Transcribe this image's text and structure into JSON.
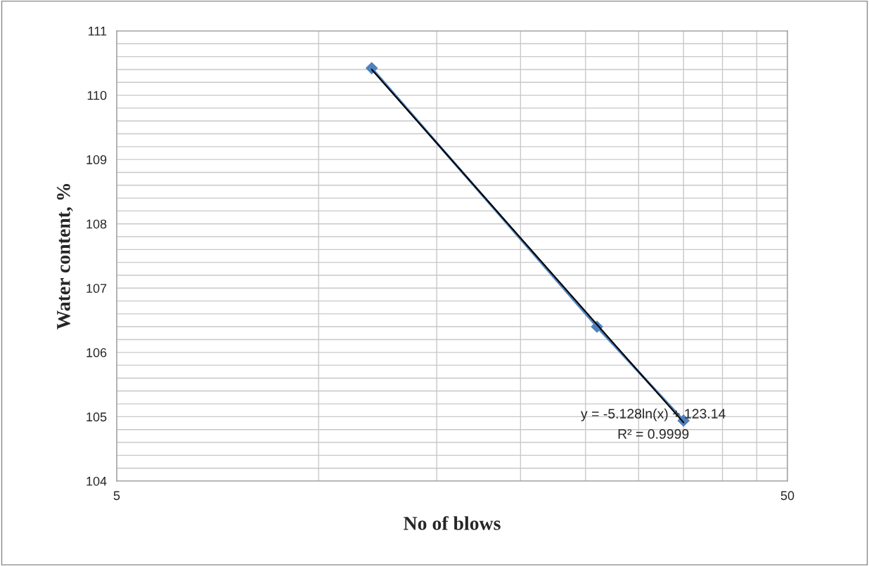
{
  "chart_data": {
    "type": "line",
    "xlabel": "No of blows",
    "ylabel": "Water content, %",
    "log": "x",
    "grid": true,
    "legend": false,
    "xlim": [
      5,
      50
    ],
    "ylim": [
      104,
      111
    ],
    "xticks": [
      5,
      {
        "value": 10,
        "label": null
      },
      {
        "value": 15,
        "label": null
      },
      {
        "value": 20,
        "label": null
      },
      {
        "value": 25,
        "label": null
      },
      {
        "value": 30,
        "label": null
      },
      {
        "value": 35,
        "label": null
      },
      {
        "value": 40,
        "label": null
      },
      {
        "value": 45,
        "label": null
      },
      50
    ],
    "yticks": [
      104,
      {
        "value": 104.2,
        "label": null
      },
      {
        "value": 104.4,
        "label": null
      },
      {
        "value": 104.6,
        "label": null
      },
      {
        "value": 104.8,
        "label": null
      },
      105,
      {
        "value": 105.2,
        "label": null
      },
      {
        "value": 105.4,
        "label": null
      },
      {
        "value": 105.6,
        "label": null
      },
      {
        "value": 105.8,
        "label": null
      },
      106,
      {
        "value": 106.2,
        "label": null
      },
      {
        "value": 106.4,
        "label": null
      },
      {
        "value": 106.6,
        "label": null
      },
      {
        "value": 106.8,
        "label": null
      },
      107,
      {
        "value": 107.2,
        "label": null
      },
      {
        "value": 107.4,
        "label": null
      },
      {
        "value": 107.6,
        "label": null
      },
      {
        "value": 107.8,
        "label": null
      },
      108,
      {
        "value": 108.2,
        "label": null
      },
      {
        "value": 108.4,
        "label": null
      },
      {
        "value": 108.6,
        "label": null
      },
      {
        "value": 108.8,
        "label": null
      },
      109,
      {
        "value": 109.2,
        "label": null
      },
      {
        "value": 109.4,
        "label": null
      },
      {
        "value": 109.6,
        "label": null
      },
      {
        "value": 109.8,
        "label": null
      },
      110,
      {
        "value": 110.2,
        "label": null
      },
      {
        "value": 110.4,
        "label": null
      },
      {
        "value": 110.6,
        "label": null
      },
      {
        "value": 110.8,
        "label": null
      },
      111
    ],
    "series": [
      {
        "color": "#4f81bd",
        "marker": "diamond",
        "x": [
          12,
          26,
          35
        ],
        "values": [
          110.42,
          106.4,
          104.94
        ]
      },
      {
        "type": "line",
        "color": "#000000",
        "marker": "none",
        "x": [
          12,
          35
        ],
        "values": [
          110.4,
          104.91
        ]
      }
    ],
    "annotations": [
      "y = -5.128ln(x) + 123.14",
      "R² = 0.9999"
    ]
  }
}
